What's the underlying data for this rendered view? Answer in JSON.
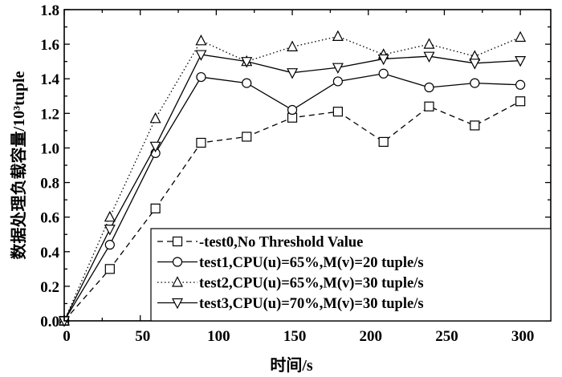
{
  "chart_data": {
    "type": "line",
    "title": "",
    "xlabel": "时间/s",
    "ylabel": "数据处理负载容量/10³tuple",
    "xlim": [
      0,
      320
    ],
    "ylim": [
      0,
      1.8
    ],
    "x_ticks": [
      "0",
      "50",
      "100",
      "150",
      "200",
      "250",
      "300"
    ],
    "y_ticks": [
      "0.0",
      "0.2",
      "0.4",
      "0.6",
      "0.8",
      "1.0",
      "1.2",
      "1.4",
      "1.6",
      "1.8"
    ],
    "x": [
      0,
      30,
      60,
      90,
      120,
      150,
      180,
      210,
      240,
      270,
      300
    ],
    "legend_position": "bottom-right",
    "series": [
      {
        "name": "test0",
        "label": "-test0,No Threshold Value",
        "marker": "square",
        "dash": "dashed",
        "values": [
          0.0,
          0.3,
          0.65,
          1.03,
          1.065,
          1.175,
          1.21,
          1.035,
          1.24,
          1.13,
          1.27
        ]
      },
      {
        "name": "test1",
        "label": "test1,CPU(u)=65%,M(v)=20 tuple/s",
        "marker": "circle",
        "dash": "solid",
        "values": [
          0.0,
          0.44,
          0.97,
          1.41,
          1.375,
          1.22,
          1.385,
          1.43,
          1.35,
          1.375,
          1.365
        ]
      },
      {
        "name": "test2",
        "label": "test2,CPU(u)=65%,M(v)=30 tuple/s",
        "marker": "triangle-up",
        "dash": "dotted",
        "values": [
          0.0,
          0.6,
          1.17,
          1.62,
          1.5,
          1.585,
          1.645,
          1.54,
          1.6,
          1.53,
          1.64
        ]
      },
      {
        "name": "test3",
        "label": "test3,CPU(u)=70%,M(v)=30 tuple/s",
        "marker": "triangle-down",
        "dash": "solid",
        "values": [
          0.0,
          0.53,
          1.01,
          1.54,
          1.5,
          1.435,
          1.465,
          1.515,
          1.53,
          1.49,
          1.505
        ]
      }
    ]
  }
}
